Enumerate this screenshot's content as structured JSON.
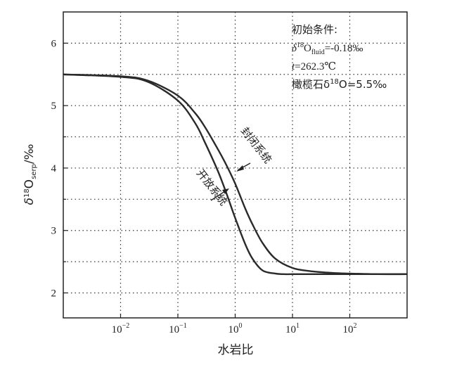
{
  "chart_data": {
    "type": "line",
    "title": "",
    "xlabel": "水岩比",
    "ylabel": "δ18Oserp/‰",
    "xscale": "log",
    "xlim": [
      0.001,
      1000
    ],
    "ylim": [
      1.6,
      6.5
    ],
    "grid": "dotted",
    "x_ticks": [
      {
        "value": 0.01,
        "base": "10",
        "exp": "−2"
      },
      {
        "value": 0.1,
        "base": "10",
        "exp": "−1"
      },
      {
        "value": 1,
        "base": "10",
        "exp": "0"
      },
      {
        "value": 10,
        "base": "10",
        "exp": "1"
      },
      {
        "value": 100,
        "base": "10",
        "exp": "2"
      }
    ],
    "y_ticks": [
      2,
      3,
      4,
      5,
      6
    ],
    "series": [
      {
        "name": "开放系统",
        "x": [
          0.001,
          0.01,
          0.03,
          0.1,
          0.2,
          0.3,
          0.5,
          0.7,
          1,
          1.5,
          2,
          3,
          5,
          7,
          10,
          30,
          100,
          1000
        ],
        "y": [
          5.5,
          5.46,
          5.38,
          5.08,
          4.72,
          4.4,
          3.95,
          3.6,
          3.2,
          2.78,
          2.55,
          2.36,
          2.31,
          2.3,
          2.3,
          2.3,
          2.3,
          2.3
        ]
      },
      {
        "name": "封闭系统",
        "x": [
          0.001,
          0.01,
          0.03,
          0.1,
          0.2,
          0.3,
          0.5,
          0.7,
          1,
          1.5,
          2,
          3,
          5,
          10,
          20,
          50,
          100,
          300,
          1000
        ],
        "y": [
          5.5,
          5.47,
          5.4,
          5.16,
          4.88,
          4.65,
          4.3,
          4.05,
          3.75,
          3.35,
          3.1,
          2.8,
          2.55,
          2.4,
          2.35,
          2.32,
          2.31,
          2.3,
          2.3
        ]
      }
    ],
    "annotation_lines": [
      {
        "text": "初始条件:"
      },
      {
        "prefix": "δ",
        "sup": "18",
        "main": "O",
        "sub": "fluid",
        "suffix": "=-0.18‰"
      },
      {
        "italic": "t",
        "suffix": "=262.3℃"
      },
      {
        "prefix": "橄榄石δ",
        "sup": "18",
        "suffix": "O=5.5‰"
      }
    ],
    "curve_labels": [
      {
        "series": "封闭系统",
        "text": "封闭系统"
      },
      {
        "series": "开放系统",
        "text": "开放系统"
      }
    ],
    "ylabel_parts": {
      "main": "δ",
      "sup": "18",
      "o": "O",
      "sub": "serp",
      "suffix": "/‰"
    }
  }
}
